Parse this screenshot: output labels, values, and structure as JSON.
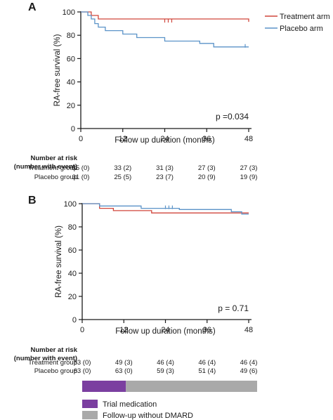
{
  "colors": {
    "treatment": "#d0463b",
    "placebo": "#5b93c8",
    "trial": "#7b3fa0",
    "followup": "#a9a9a9",
    "axis": "#1a1a1a"
  },
  "legend": {
    "treatment": "Treatment arm",
    "placebo": "Placebo arm"
  },
  "risk_header": [
    "Number at risk",
    "(number with event)"
  ],
  "risk_group_labels": [
    "Treatment group",
    "Placebo group"
  ],
  "timeline_legend": [
    {
      "label": "Trial medication",
      "color": "#7b3fa0"
    },
    {
      "label": "Follow-up without DMARD",
      "color": "#a9a9a9"
    }
  ],
  "timeline": {
    "trial_until_month": 12,
    "end_month": 48
  },
  "chart_data": [
    {
      "type": "line",
      "panel": "A",
      "xlabel": "Follow up duration (months)",
      "ylabel": "RA-free survival (%)",
      "xlim": [
        0,
        48
      ],
      "ylim": [
        0,
        100
      ],
      "xticks": [
        "0",
        "12",
        "24",
        "36",
        "48"
      ],
      "yticks": [
        "0",
        "20",
        "40",
        "60",
        "80",
        "100"
      ],
      "annotation": "p =0.034",
      "series": [
        {
          "name": "Treatment arm",
          "color": "#d0463b",
          "steps": [
            [
              0,
              100
            ],
            [
              3,
              97
            ],
            [
              5,
              94
            ],
            [
              48,
              91.5
            ]
          ],
          "censor": [
            [
              24,
              91.5
            ],
            [
              25,
              91.5
            ],
            [
              26,
              91.5
            ]
          ]
        },
        {
          "name": "Placebo arm",
          "color": "#5b93c8",
          "steps": [
            [
              0,
              100
            ],
            [
              2,
              97
            ],
            [
              3,
              94
            ],
            [
              4,
              90
            ],
            [
              5,
              87
            ],
            [
              7,
              84
            ],
            [
              12,
              81
            ],
            [
              16,
              78
            ],
            [
              24,
              75
            ],
            [
              34,
              73
            ],
            [
              38,
              70
            ],
            [
              48,
              70
            ]
          ],
          "censor": [
            [
              47,
              70
            ]
          ]
        }
      ],
      "risk_times": [
        0,
        12,
        24,
        36,
        48
      ],
      "risk_table": [
        [
          "35 (0)",
          "33 (2)",
          "31 (3)",
          "27 (3)",
          "27 (3)"
        ],
        [
          "31 (0)",
          "25 (5)",
          "23 (7)",
          "20 (9)",
          "19 (9)"
        ]
      ]
    },
    {
      "type": "line",
      "panel": "B",
      "xlabel": "Follow up duration (months)",
      "ylabel": "RA-free survival (%)",
      "xlim": [
        0,
        48
      ],
      "ylim": [
        0,
        100
      ],
      "xticks": [
        "0",
        "12",
        "24",
        "36",
        "48"
      ],
      "yticks": [
        "0",
        "20",
        "40",
        "60",
        "80",
        "100"
      ],
      "annotation": "p = 0.71",
      "series": [
        {
          "name": "Treatment arm",
          "color": "#d0463b",
          "steps": [
            [
              0,
              100
            ],
            [
              5,
              96
            ],
            [
              9,
              94
            ],
            [
              20,
              92
            ],
            [
              48,
              92
            ]
          ],
          "censor": []
        },
        {
          "name": "Placebo arm",
          "color": "#5b93c8",
          "steps": [
            [
              0,
              100
            ],
            [
              5,
              98
            ],
            [
              16,
              98
            ],
            [
              17,
              96
            ],
            [
              27,
              96
            ],
            [
              28,
              95
            ],
            [
              43,
              93
            ],
            [
              46,
              91
            ],
            [
              48,
              91
            ]
          ],
          "censor": [
            [
              24,
              96
            ],
            [
              25,
              96
            ],
            [
              26,
              96
            ]
          ]
        }
      ],
      "risk_times": [
        0,
        12,
        24,
        36,
        48
      ],
      "risk_table": [
        [
          "53 (0)",
          "49 (3)",
          "46 (4)",
          "46 (4)",
          "46 (4)"
        ],
        [
          "63 (0)",
          "63 (0)",
          "59 (3)",
          "51 (4)",
          "49 (6)"
        ]
      ]
    }
  ]
}
